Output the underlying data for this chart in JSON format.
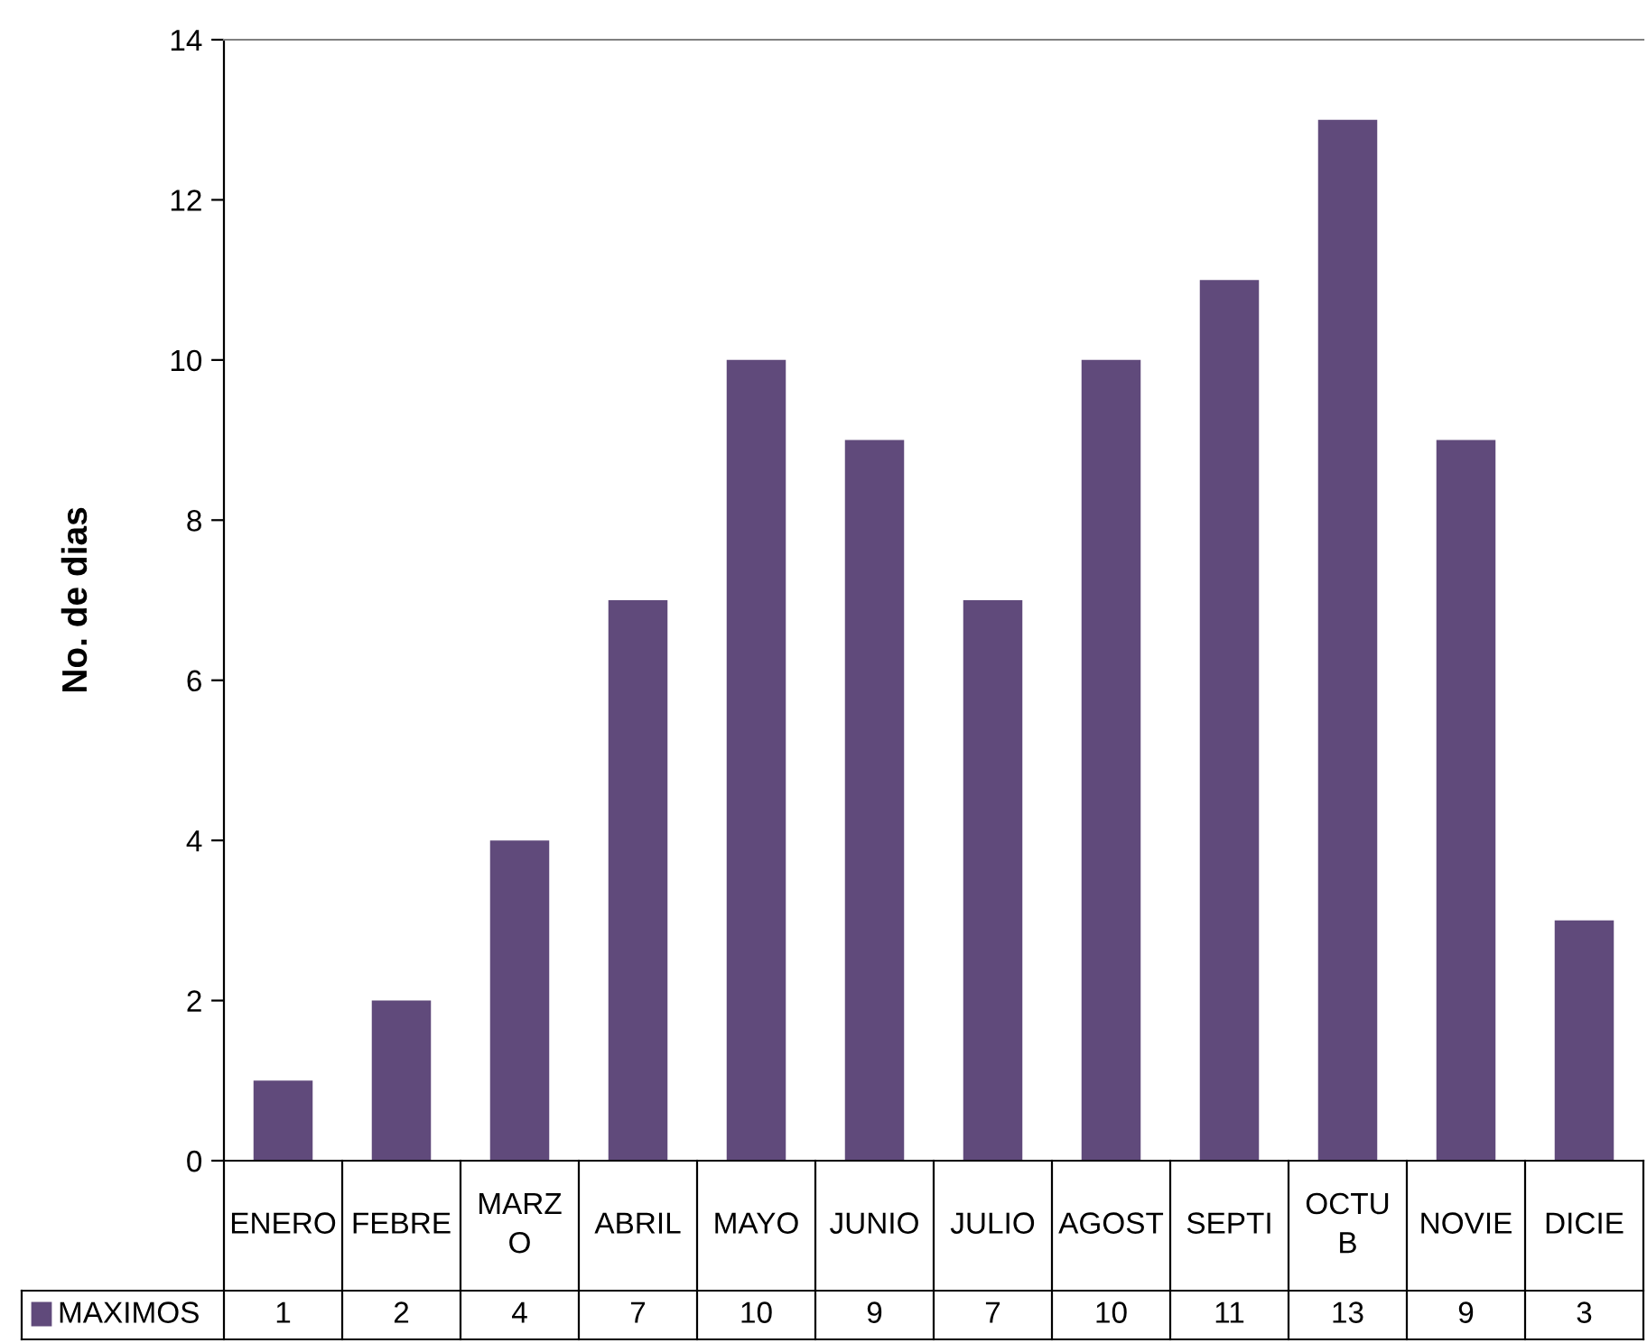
{
  "chart_data": {
    "type": "bar",
    "ylabel": "No. de dias",
    "categories": [
      "ENERO",
      "FEBRE",
      "MARZ\nO",
      "ABRIL",
      "MAYO",
      "JUNIO",
      "JULIO",
      "AGOST",
      "SEPTI",
      "OCTU\nB",
      "NOVIE",
      "DICIE"
    ],
    "series": [
      {
        "name": "MAXIMOS",
        "color": "#604a7b",
        "values": [
          1,
          2,
          4,
          7,
          10,
          9,
          7,
          10,
          11,
          13,
          9,
          3
        ]
      }
    ],
    "ylim": [
      0,
      14
    ],
    "yticks": [
      0,
      2,
      4,
      6,
      8,
      10,
      12,
      14
    ],
    "grid": false,
    "legend": "bottom left",
    "data_labels": true
  }
}
